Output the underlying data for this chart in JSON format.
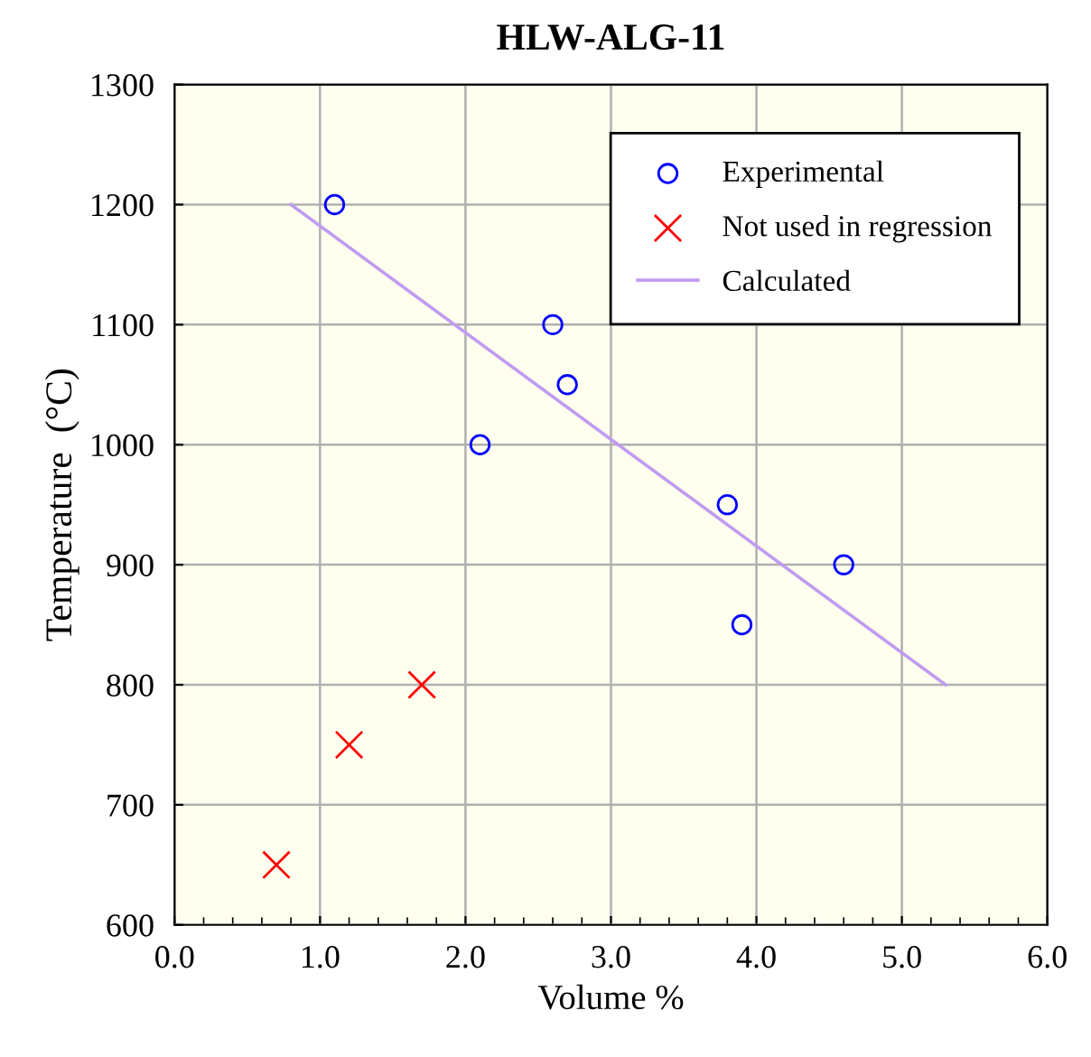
{
  "chart_data": {
    "type": "scatter",
    "title": "HLW-ALG-11",
    "xlabel": "Volume %",
    "ylabel": "Temperature  (°C)",
    "series": [
      {
        "name": "Experimental",
        "marker": "circle",
        "color": "#0000ff",
        "x": [
          1.1,
          2.1,
          2.6,
          2.7,
          3.8,
          3.9,
          4.6
        ],
        "values": [
          1200,
          1000,
          1100,
          1050,
          950,
          850,
          900
        ]
      },
      {
        "name": "Not used in regression",
        "marker": "cross",
        "color": "#ff0000",
        "x": [
          0.7,
          1.2,
          1.7
        ],
        "values": [
          650,
          750,
          800
        ]
      },
      {
        "name": "Calculated",
        "type": "line",
        "marker": "none",
        "color": "#c09cf0",
        "x": [
          0.8,
          5.3
        ],
        "values": [
          1200,
          800
        ]
      }
    ],
    "xlim": [
      0,
      6
    ],
    "ylim": [
      600,
      1300
    ],
    "xticks": [
      {
        "value": 0,
        "label": "0.0"
      },
      {
        "value": 1,
        "label": "1.0"
      },
      {
        "value": 2,
        "label": "2.0"
      },
      {
        "value": 3,
        "label": "3.0"
      },
      {
        "value": 4,
        "label": "4.0"
      },
      {
        "value": 5,
        "label": "5.0"
      },
      {
        "value": 6,
        "label": "6.0"
      }
    ],
    "yticks": [
      600,
      700,
      800,
      900,
      1000,
      1100,
      1200,
      1300
    ],
    "grid": true,
    "legend": "top right"
  }
}
